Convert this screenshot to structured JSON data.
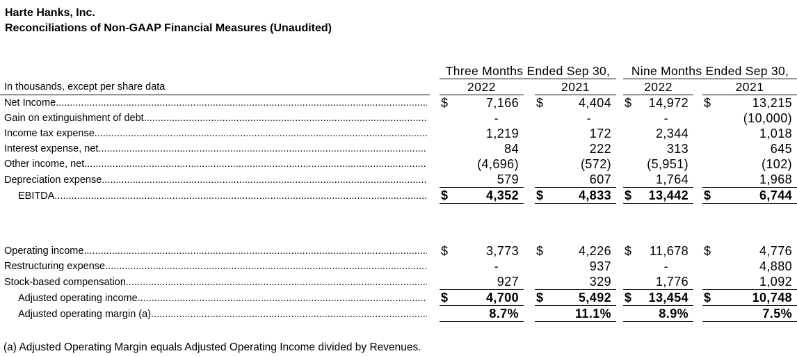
{
  "page": {
    "company": "Harte Hanks, Inc.",
    "title": "Reconciliations of Non-GAAP Financial Measures (Unaudited)",
    "footnote": "(a) Adjusted Operating Margin equals Adjusted Operating Income divided by Revenues."
  },
  "table": {
    "row_header_label": "In thousands, except per share data",
    "currency_symbol": "$",
    "column_groups": [
      {
        "label": "Three Months Ended Sep 30,",
        "years": [
          "2022",
          "2021"
        ]
      },
      {
        "label": "Nine Months Ended Sep 30,",
        "years": [
          "2022",
          "2021"
        ]
      }
    ],
    "sections": [
      {
        "name": "ebitda-reconciliation",
        "rows": [
          {
            "label": "Net Income",
            "dollar": true,
            "values": [
              "7,166",
              "4,404",
              "14,972",
              "13,215"
            ]
          },
          {
            "label": "Gain on extinguishment of debt",
            "values": [
              "-",
              "-",
              "-",
              "(10,000)"
            ]
          },
          {
            "label": "Income tax expense",
            "values": [
              "1,219",
              "172",
              "2,344",
              "1,018"
            ]
          },
          {
            "label": "Interest expense, net",
            "values": [
              "84",
              "222",
              "313",
              "645"
            ]
          },
          {
            "label": "Other income, net",
            "values": [
              "(4,696)",
              "(572)",
              "(5,951)",
              "(102)"
            ]
          },
          {
            "label": "Depreciation expense",
            "underline": true,
            "values": [
              "579",
              "607",
              "1,764",
              "1,968"
            ]
          },
          {
            "label": "EBITDA",
            "indent": true,
            "dollar": true,
            "bold": true,
            "underline": true,
            "values": [
              "4,352",
              "4,833",
              "13,442",
              "6,744"
            ]
          }
        ]
      },
      {
        "name": "adjusted-operating-income-reconciliation",
        "rows": [
          {
            "label": "Operating income",
            "dollar": true,
            "values": [
              "3,773",
              "4,226",
              "11,678",
              "4,776"
            ]
          },
          {
            "label": "Restructuring expense",
            "values": [
              "-",
              "937",
              "-",
              "4,880"
            ]
          },
          {
            "label": "Stock-based compensation",
            "underline": true,
            "values": [
              "927",
              "329",
              "1,776",
              "1,092"
            ]
          },
          {
            "label": "Adjusted operating income",
            "indent": true,
            "dollar": true,
            "bold": true,
            "underline": true,
            "values": [
              "4,700",
              "5,492",
              "13,454",
              "10,748"
            ]
          },
          {
            "label": "Adjusted operating margin (a)",
            "indent": true,
            "bold": true,
            "underline": true,
            "values": [
              "8.7%",
              "11.1%",
              "8.9%",
              "7.5%"
            ]
          }
        ]
      }
    ]
  }
}
